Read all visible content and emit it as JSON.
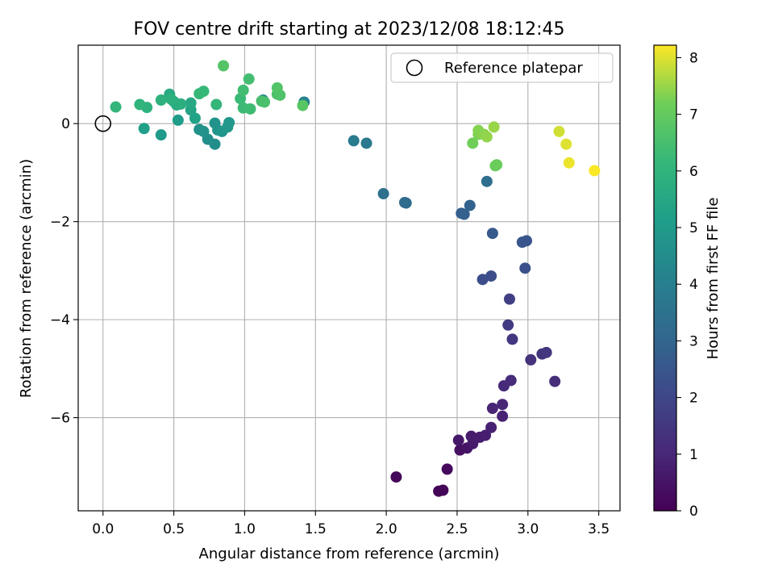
{
  "chart_data": {
    "type": "scatter",
    "title": "FOV centre drift starting at 2023/12/08 18:12:45",
    "xlabel": "Angular distance from reference (arcmin)",
    "ylabel": "Rotation from reference (arcmin)",
    "xlim": [
      -0.175,
      3.65
    ],
    "ylim": [
      -7.9,
      1.6
    ],
    "x_ticks": [
      0.0,
      0.5,
      1.0,
      1.5,
      2.0,
      2.5,
      3.0,
      3.5
    ],
    "x_tick_labels": [
      "0.0",
      "0.5",
      "1.0",
      "1.5",
      "2.0",
      "2.5",
      "3.0",
      "3.5"
    ],
    "y_ticks": [
      0,
      -2,
      -4,
      -6
    ],
    "y_tick_labels": [
      "0",
      "−2",
      "−4",
      "−6"
    ],
    "grid": true,
    "colormap": "viridis",
    "colorbar": {
      "label": "Hours from first FF file",
      "range": [
        0,
        8.22
      ],
      "ticks": [
        0,
        1,
        2,
        3,
        4,
        5,
        6,
        7,
        8
      ],
      "tick_labels": [
        "0",
        "1",
        "2",
        "3",
        "4",
        "5",
        "6",
        "7",
        "8"
      ]
    },
    "legend": {
      "placement": "top-right",
      "entries": [
        "Reference platepar"
      ]
    },
    "reference_point": {
      "x": 0.0,
      "y": 0.0
    },
    "points": [
      {
        "x": 2.37,
        "y": -7.5,
        "h": 0.05
      },
      {
        "x": 2.4,
        "y": -7.48,
        "h": 0.1
      },
      {
        "x": 2.07,
        "y": -7.21,
        "h": 0.15
      },
      {
        "x": 2.43,
        "y": -7.05,
        "h": 0.25
      },
      {
        "x": 2.52,
        "y": -6.66,
        "h": 0.4
      },
      {
        "x": 2.57,
        "y": -6.62,
        "h": 0.5
      },
      {
        "x": 2.51,
        "y": -6.46,
        "h": 0.6
      },
      {
        "x": 2.61,
        "y": -6.53,
        "h": 0.65
      },
      {
        "x": 2.6,
        "y": -6.38,
        "h": 0.7
      },
      {
        "x": 2.66,
        "y": -6.4,
        "h": 0.75
      },
      {
        "x": 2.7,
        "y": -6.36,
        "h": 0.8
      },
      {
        "x": 2.74,
        "y": -6.2,
        "h": 0.85
      },
      {
        "x": 2.82,
        "y": -5.97,
        "h": 0.9
      },
      {
        "x": 2.75,
        "y": -5.81,
        "h": 0.95
      },
      {
        "x": 2.82,
        "y": -5.73,
        "h": 1.0
      },
      {
        "x": 2.83,
        "y": -5.35,
        "h": 1.1
      },
      {
        "x": 2.88,
        "y": -5.24,
        "h": 1.15
      },
      {
        "x": 3.19,
        "y": -5.26,
        "h": 1.2
      },
      {
        "x": 3.02,
        "y": -4.82,
        "h": 1.35
      },
      {
        "x": 3.1,
        "y": -4.7,
        "h": 1.4
      },
      {
        "x": 3.13,
        "y": -4.67,
        "h": 1.45
      },
      {
        "x": 2.89,
        "y": -4.4,
        "h": 1.5
      },
      {
        "x": 2.86,
        "y": -4.11,
        "h": 1.6
      },
      {
        "x": 2.87,
        "y": -3.58,
        "h": 1.75
      },
      {
        "x": 2.68,
        "y": -3.18,
        "h": 2.2
      },
      {
        "x": 2.74,
        "y": -3.11,
        "h": 2.25
      },
      {
        "x": 2.98,
        "y": -2.95,
        "h": 2.3
      },
      {
        "x": 2.96,
        "y": -2.42,
        "h": 2.45
      },
      {
        "x": 2.99,
        "y": -2.39,
        "h": 2.5
      },
      {
        "x": 2.75,
        "y": -2.24,
        "h": 2.6
      },
      {
        "x": 2.53,
        "y": -1.83,
        "h": 2.8
      },
      {
        "x": 2.55,
        "y": -1.85,
        "h": 2.85
      },
      {
        "x": 2.59,
        "y": -1.67,
        "h": 2.9
      },
      {
        "x": 2.13,
        "y": -1.61,
        "h": 3.2
      },
      {
        "x": 2.14,
        "y": -1.62,
        "h": 3.25
      },
      {
        "x": 2.71,
        "y": -1.18,
        "h": 3.3
      },
      {
        "x": 1.98,
        "y": -1.43,
        "h": 3.4
      },
      {
        "x": 1.86,
        "y": -0.4,
        "h": 3.75
      },
      {
        "x": 1.77,
        "y": -0.35,
        "h": 3.85
      },
      {
        "x": 1.42,
        "y": 0.44,
        "h": 4.1
      },
      {
        "x": 1.13,
        "y": 0.48,
        "h": 4.2
      },
      {
        "x": 0.79,
        "y": -0.42,
        "h": 4.5
      },
      {
        "x": 0.74,
        "y": -0.32,
        "h": 4.6
      },
      {
        "x": 0.68,
        "y": -0.12,
        "h": 4.65
      },
      {
        "x": 0.71,
        "y": -0.16,
        "h": 4.7
      },
      {
        "x": 0.79,
        "y": 0.01,
        "h": 4.75
      },
      {
        "x": 0.81,
        "y": -0.13,
        "h": 4.8
      },
      {
        "x": 0.84,
        "y": -0.16,
        "h": 4.85
      },
      {
        "x": 0.88,
        "y": -0.07,
        "h": 4.9
      },
      {
        "x": 0.89,
        "y": 0.02,
        "h": 4.95
      },
      {
        "x": 0.41,
        "y": -0.23,
        "h": 5.0
      },
      {
        "x": 0.53,
        "y": 0.07,
        "h": 5.1
      },
      {
        "x": 0.29,
        "y": -0.1,
        "h": 5.2
      },
      {
        "x": 0.65,
        "y": 0.11,
        "h": 5.3
      },
      {
        "x": 0.62,
        "y": 0.28,
        "h": 5.4
      },
      {
        "x": 0.62,
        "y": 0.42,
        "h": 5.5
      },
      {
        "x": 0.47,
        "y": 0.6,
        "h": 5.6
      },
      {
        "x": 0.5,
        "y": 0.45,
        "h": 5.7
      },
      {
        "x": 0.52,
        "y": 0.38,
        "h": 5.75
      },
      {
        "x": 0.55,
        "y": 0.4,
        "h": 5.8
      },
      {
        "x": 0.48,
        "y": 0.5,
        "h": 5.85
      },
      {
        "x": 0.41,
        "y": 0.48,
        "h": 5.9
      },
      {
        "x": 0.31,
        "y": 0.33,
        "h": 5.95
      },
      {
        "x": 0.26,
        "y": 0.39,
        "h": 6.0
      },
      {
        "x": 0.09,
        "y": 0.34,
        "h": 6.05
      },
      {
        "x": 0.8,
        "y": 0.39,
        "h": 6.1
      },
      {
        "x": 0.68,
        "y": 0.61,
        "h": 6.15
      },
      {
        "x": 0.71,
        "y": 0.66,
        "h": 6.2
      },
      {
        "x": 0.97,
        "y": 0.51,
        "h": 6.25
      },
      {
        "x": 0.99,
        "y": 0.32,
        "h": 6.3
      },
      {
        "x": 1.04,
        "y": 0.3,
        "h": 6.35
      },
      {
        "x": 0.99,
        "y": 0.68,
        "h": 6.4
      },
      {
        "x": 1.03,
        "y": 0.91,
        "h": 6.45
      },
      {
        "x": 1.12,
        "y": 0.46,
        "h": 6.5
      },
      {
        "x": 1.14,
        "y": 0.44,
        "h": 6.55
      },
      {
        "x": 1.23,
        "y": 0.6,
        "h": 6.6
      },
      {
        "x": 1.25,
        "y": 0.58,
        "h": 6.65
      },
      {
        "x": 1.23,
        "y": 0.73,
        "h": 6.7
      },
      {
        "x": 0.85,
        "y": 1.18,
        "h": 6.75
      },
      {
        "x": 1.41,
        "y": 0.37,
        "h": 6.8
      },
      {
        "x": 2.78,
        "y": -0.84,
        "h": 7.05
      },
      {
        "x": 2.77,
        "y": -0.86,
        "h": 7.1
      },
      {
        "x": 2.61,
        "y": -0.4,
        "h": 7.2
      },
      {
        "x": 2.65,
        "y": -0.22,
        "h": 7.3
      },
      {
        "x": 2.65,
        "y": -0.14,
        "h": 7.35
      },
      {
        "x": 2.69,
        "y": -0.22,
        "h": 7.4
      },
      {
        "x": 2.71,
        "y": -0.27,
        "h": 7.45
      },
      {
        "x": 2.76,
        "y": -0.07,
        "h": 7.5
      },
      {
        "x": 3.22,
        "y": -0.16,
        "h": 7.9
      },
      {
        "x": 3.27,
        "y": -0.42,
        "h": 8.0
      },
      {
        "x": 3.29,
        "y": -0.8,
        "h": 8.1
      },
      {
        "x": 3.47,
        "y": -0.96,
        "h": 8.2
      }
    ]
  }
}
